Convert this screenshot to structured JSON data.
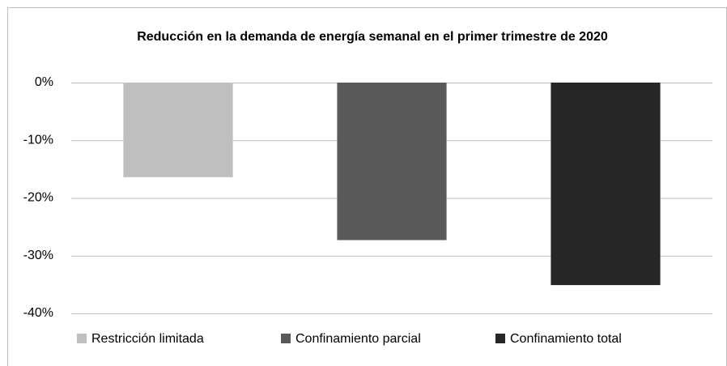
{
  "chart_data": {
    "type": "bar",
    "title": "Reducción en la demanda de energía semanal en el primer trimestre de 2020",
    "series": [
      {
        "name": "Restricción limitada",
        "color": "#bfbfbf",
        "values": [
          -16.4
        ]
      },
      {
        "name": "Confinamiento parcial",
        "color": "#595959",
        "values": [
          -27.3
        ]
      },
      {
        "name": "Confinamiento total",
        "color": "#262626",
        "values": [
          -35.1
        ]
      }
    ],
    "ylim": [
      -40,
      0
    ],
    "yticks": [
      {
        "value": 0,
        "label": "0%"
      },
      {
        "value": -10,
        "label": "-10%"
      },
      {
        "value": -20,
        "label": "-20%"
      },
      {
        "value": -30,
        "label": "-30%"
      },
      {
        "value": -40,
        "label": "-40%"
      }
    ],
    "grid": true,
    "legend": "bottom"
  }
}
